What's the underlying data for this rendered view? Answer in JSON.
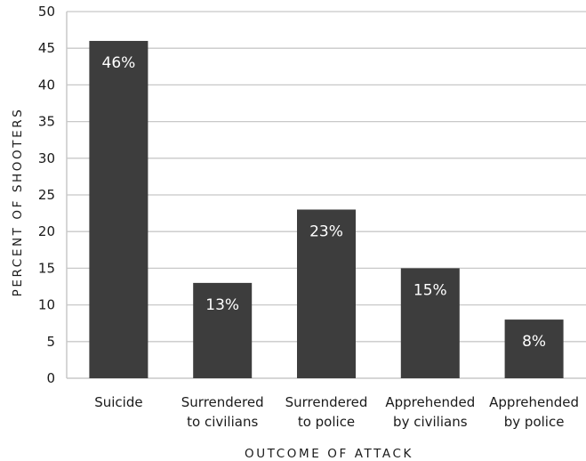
{
  "chart_data": {
    "type": "bar",
    "categories": [
      [
        "Suicide"
      ],
      [
        "Surrendered",
        "to civilians"
      ],
      [
        "Surrendered",
        "to police"
      ],
      [
        "Apprehended",
        "by civilians"
      ],
      [
        "Apprehended",
        "by police"
      ]
    ],
    "values": [
      46,
      13,
      23,
      15,
      8
    ],
    "data_labels": [
      "46%",
      "13%",
      "23%",
      "15%",
      "8%"
    ],
    "title": "",
    "xlabel": "OUTCOME OF ATTACK",
    "ylabel": "PERCENT OF SHOOTERS",
    "ylim": [
      0,
      50
    ],
    "yticks": [
      0,
      5,
      10,
      15,
      20,
      25,
      30,
      35,
      40,
      45,
      50
    ],
    "grid": true,
    "bar_color": "#3d3d3d",
    "grid_color": "#c8c8c8",
    "label_color": "#ffffff"
  }
}
